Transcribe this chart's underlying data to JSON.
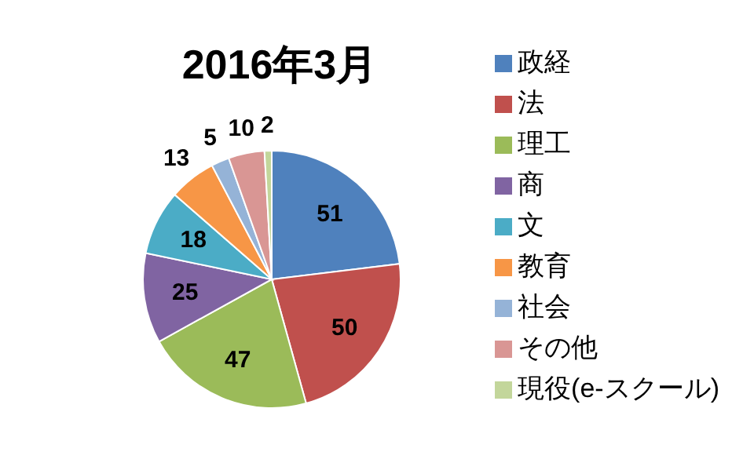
{
  "chart_data": {
    "type": "pie",
    "title": "2016年3月",
    "categories": [
      "政経",
      "法",
      "理工",
      "商",
      "文",
      "教育",
      "社会",
      "その他",
      "現役(e-スクール)"
    ],
    "values": [
      51,
      50,
      47,
      25,
      18,
      13,
      5,
      10,
      2
    ],
    "colors": [
      "#4f81bd",
      "#c0504d",
      "#9bbb59",
      "#8064a2",
      "#4bacc6",
      "#f79646",
      "#95b3d7",
      "#d99694",
      "#c3d69b"
    ],
    "data_labels": true,
    "legend": "right"
  }
}
